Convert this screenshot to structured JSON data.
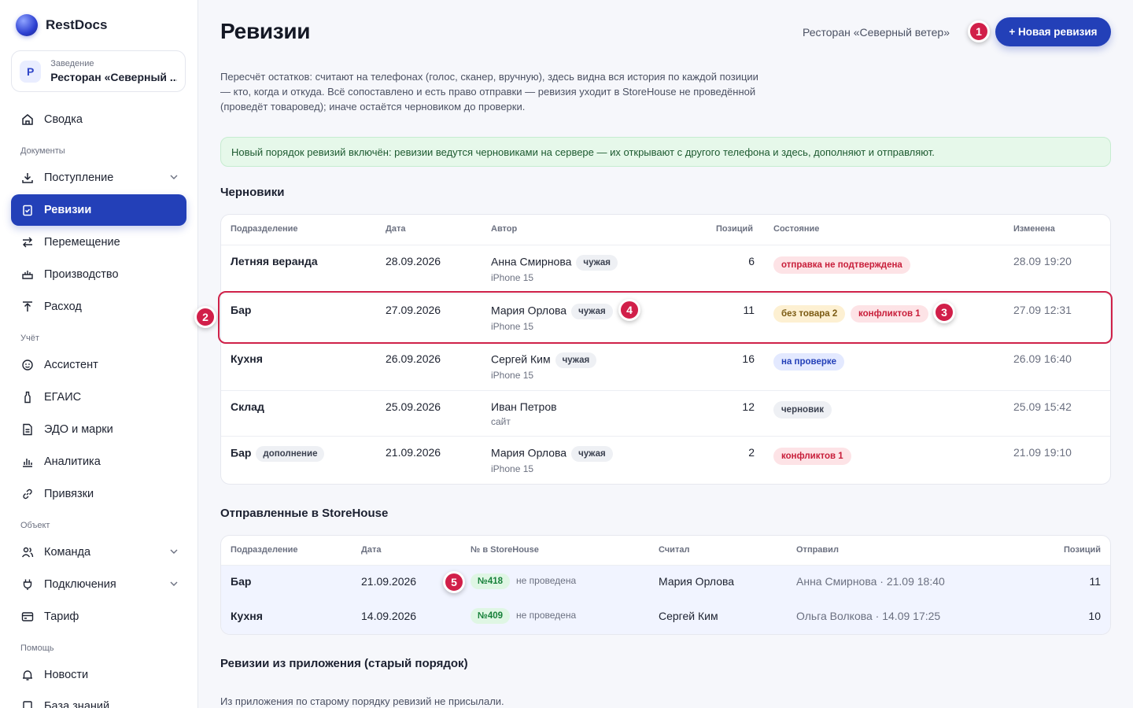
{
  "sidebar": {
    "brand": "RestDocs",
    "venue_label": "Заведение",
    "venue_name": "Ресторан «Северный ...",
    "venue_initial": "Р",
    "items": [
      {
        "label": "Сводка",
        "icon": "home-icon"
      },
      {
        "label": "Документы",
        "section": true
      },
      {
        "label": "Поступление",
        "icon": "download-icon",
        "chevron": true
      },
      {
        "label": "Ревизии",
        "icon": "clipboard-check-icon",
        "active": true
      },
      {
        "label": "Перемещение",
        "icon": "swap-icon"
      },
      {
        "label": "Производство",
        "icon": "cooking-pot-icon"
      },
      {
        "label": "Расход",
        "icon": "upload-icon"
      },
      {
        "label": "Учёт",
        "section": true
      },
      {
        "label": "Ассистент",
        "icon": "smile-icon"
      },
      {
        "label": "ЕГАИС",
        "icon": "bottle-icon"
      },
      {
        "label": "ЭДО и марки",
        "icon": "document-icon"
      },
      {
        "label": "Аналитика",
        "icon": "bar-chart-icon"
      },
      {
        "label": "Привязки",
        "icon": "link-icon"
      },
      {
        "label": "Объект",
        "section": true
      },
      {
        "label": "Команда",
        "icon": "users-icon",
        "chevron": true
      },
      {
        "label": "Подключения",
        "icon": "plug-icon",
        "chevron": true
      },
      {
        "label": "Тариф",
        "icon": "card-icon"
      },
      {
        "label": "Помощь",
        "section": true
      },
      {
        "label": "Новости",
        "icon": "bell-icon"
      },
      {
        "label": "База знаний",
        "icon": "book-icon"
      }
    ]
  },
  "header": {
    "title": "Ревизии",
    "restaurant": "Ресторан «Северный ветер»",
    "new_button": "+ Новая ревизия"
  },
  "description": "Пересчёт остатков: считают на телефонах (голос, сканер, вручную), здесь видна вся история по каждой позиции — кто, когда и откуда. Всё сопоставлено и есть право отправки — ревизия уходит в StoreHouse не проведённой (проведёт товаровед); иначе остаётся черновиком до проверки.",
  "banner": "Новый порядок ревизий включён: ревизии ведутся черновиками на сервере — их открывают с другого телефона и здесь, дополняют и отправляют.",
  "drafts": {
    "title": "Черновики",
    "columns": [
      "Подразделение",
      "Дата",
      "Автор",
      "Позиций",
      "Состояние",
      "Изменена"
    ],
    "rows": [
      {
        "dept": "Летняя веранда",
        "dept_tag": "",
        "date": "28.09.2026",
        "author": "Анна Смирнова",
        "author_tag": "чужая",
        "device": "iPhone 15",
        "count": "6",
        "statuses": [
          {
            "text": "отправка не подтверждена",
            "kind": "red"
          }
        ],
        "changed": "28.09 19:20"
      },
      {
        "dept": "Бар",
        "dept_tag": "",
        "date": "27.09.2026",
        "author": "Мария Орлова",
        "author_tag": "чужая",
        "device": "iPhone 15",
        "count": "11",
        "statuses": [
          {
            "text": "без товара 2",
            "kind": "yellow"
          },
          {
            "text": "конфликтов 1",
            "kind": "red"
          }
        ],
        "changed": "27.09 12:31"
      },
      {
        "dept": "Кухня",
        "dept_tag": "",
        "date": "26.09.2026",
        "author": "Сергей Ким",
        "author_tag": "чужая",
        "device": "iPhone 15",
        "count": "16",
        "statuses": [
          {
            "text": "на проверке",
            "kind": "blue"
          }
        ],
        "changed": "26.09 16:40"
      },
      {
        "dept": "Склад",
        "dept_tag": "",
        "date": "25.09.2026",
        "author": "Иван Петров",
        "author_tag": "",
        "device": "сайт",
        "count": "12",
        "statuses": [
          {
            "text": "черновик",
            "kind": "gray"
          }
        ],
        "changed": "25.09 15:42"
      },
      {
        "dept": "Бар",
        "dept_tag": "дополнение",
        "date": "21.09.2026",
        "author": "Мария Орлова",
        "author_tag": "чужая",
        "device": "iPhone 15",
        "count": "2",
        "statuses": [
          {
            "text": "конфликтов 1",
            "kind": "red"
          }
        ],
        "changed": "21.09 19:10"
      }
    ]
  },
  "sent": {
    "title": "Отправленные в StoreHouse",
    "columns": [
      "Подразделение",
      "Дата",
      "№ в StoreHouse",
      "Считал",
      "Отправил",
      "Позиций"
    ],
    "rows": [
      {
        "dept": "Бар",
        "date": "21.09.2026",
        "sh_number": "№418",
        "sh_state": "не проведена",
        "counter": "Мария Орлова",
        "sender": "Анна Смирнова · 21.09 18:40",
        "count": "11"
      },
      {
        "dept": "Кухня",
        "date": "14.09.2026",
        "sh_number": "№409",
        "sh_state": "не проведена",
        "counter": "Сергей Ким",
        "sender": "Ольга Волкова · 14.09 17:25",
        "count": "10"
      }
    ]
  },
  "legacy": {
    "title": "Ревизии из приложения (старый порядок)",
    "note": "Из приложения по старому порядку ревизий не присылали."
  },
  "markers": [
    "1",
    "2",
    "3",
    "4",
    "5"
  ],
  "colors": {
    "accent": "#2340b8",
    "marker": "#d11f49",
    "banner_bg": "#e6f8ea"
  }
}
